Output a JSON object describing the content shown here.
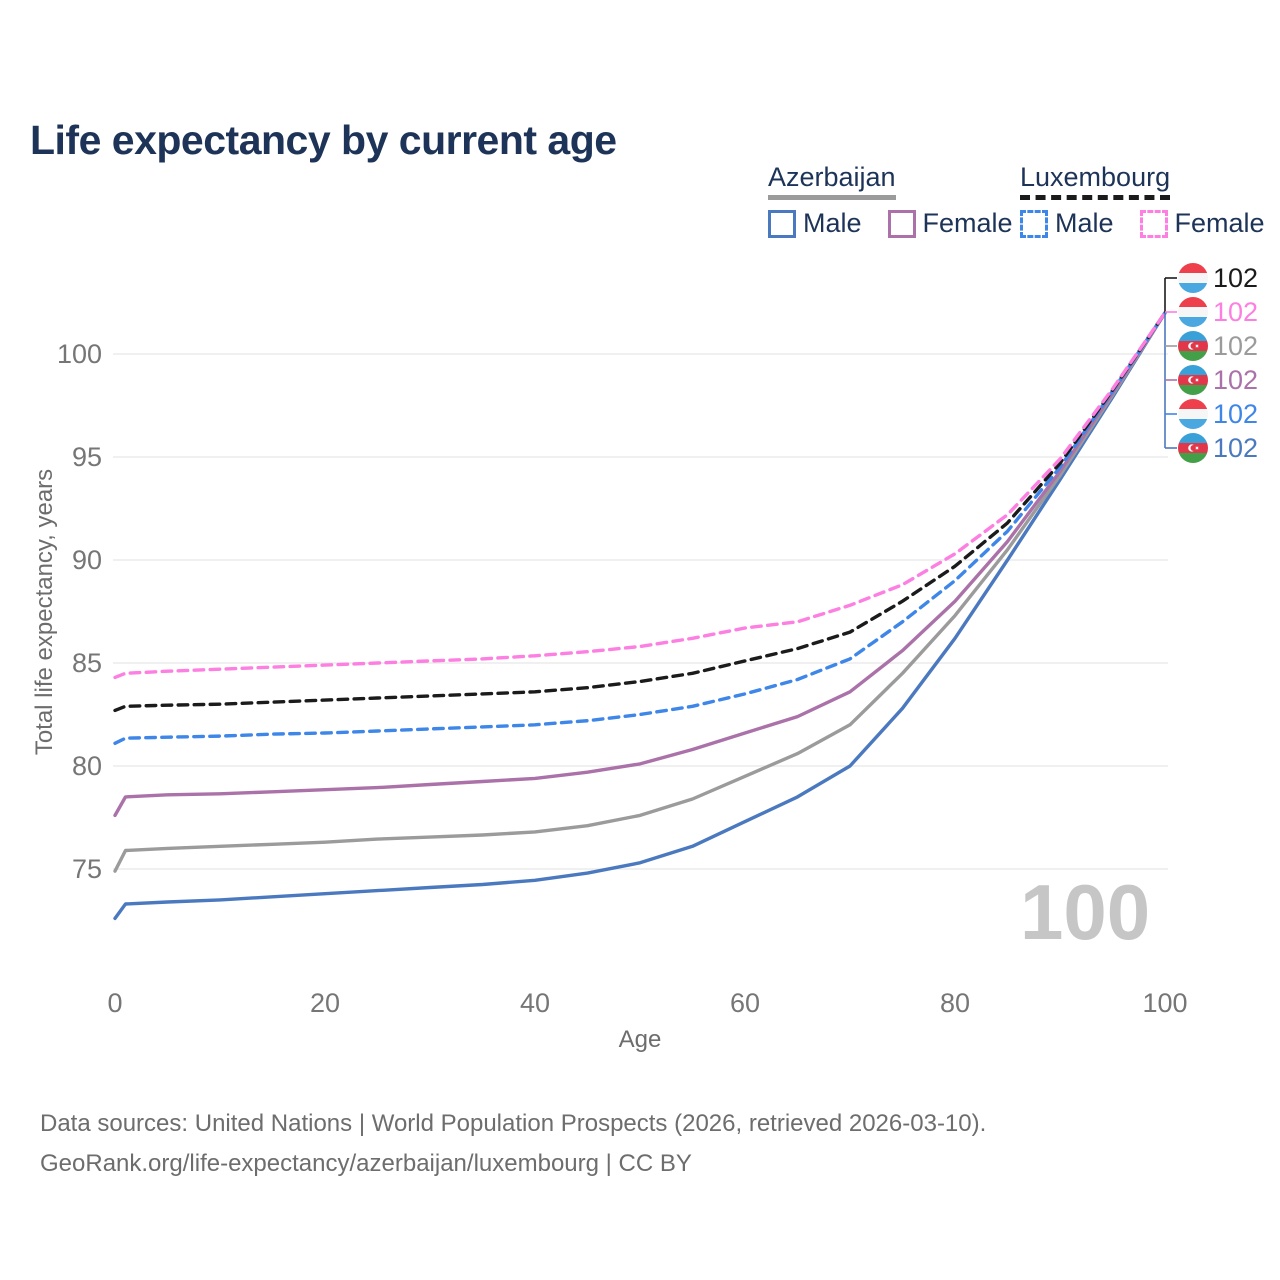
{
  "title": "Life expectancy by current age",
  "legend": {
    "groups": [
      {
        "country": "Azerbaijan",
        "items": [
          {
            "label": "Male"
          },
          {
            "label": "Female"
          }
        ]
      },
      {
        "country": "Luxembourg",
        "items": [
          {
            "label": "Male"
          },
          {
            "label": "Female"
          }
        ]
      }
    ]
  },
  "colors": {
    "az_male": "#4b79bf",
    "az_female": "#ab72a9",
    "az_total": "#9b9b9b",
    "lux_male": "#3e86e8",
    "lux_female": "#fc7fe1",
    "lux_total": "#1b1b1b",
    "grid": "#ebebeb",
    "axis_text": "#767676",
    "heading_text": "#1d3357",
    "watermark": "#c6c6c6"
  },
  "axes": {
    "x": {
      "label": "Age",
      "ticks": [
        0,
        20,
        40,
        60,
        80,
        100
      ]
    },
    "y": {
      "label": "Total life expectancy, years",
      "ticks": [
        75,
        80,
        85,
        90,
        95,
        100
      ]
    }
  },
  "watermark": "100",
  "end_labels": [
    {
      "flag": "luxembourg",
      "series": "lux_total",
      "value": "102"
    },
    {
      "flag": "luxembourg",
      "series": "lux_female",
      "value": "102"
    },
    {
      "flag": "azerbaijan",
      "series": "az_total",
      "value": "102"
    },
    {
      "flag": "azerbaijan",
      "series": "az_female",
      "value": "102"
    },
    {
      "flag": "luxembourg",
      "series": "lux_male",
      "value": "102"
    },
    {
      "flag": "azerbaijan",
      "series": "az_male",
      "value": "102"
    }
  ],
  "chart_data": {
    "type": "line",
    "title": "Life expectancy by current age",
    "xlabel": "Age",
    "ylabel": "Total life expectancy, years",
    "xlim": [
      0,
      100
    ],
    "ylim": [
      71.5,
      103
    ],
    "grid": "horizontal",
    "x": [
      0,
      1,
      5,
      10,
      15,
      20,
      25,
      30,
      35,
      40,
      45,
      50,
      55,
      60,
      65,
      70,
      75,
      80,
      85,
      90,
      95,
      100
    ],
    "series": [
      {
        "name": "Luxembourg Female",
        "key": "lux_female",
        "dash": true,
        "values": [
          84.3,
          84.5,
          84.6,
          84.7,
          84.8,
          84.9,
          85.0,
          85.1,
          85.2,
          85.35,
          85.55,
          85.8,
          86.2,
          86.7,
          87.0,
          87.8,
          88.8,
          90.3,
          92.2,
          94.9,
          98.3,
          102
        ]
      },
      {
        "name": "Luxembourg",
        "key": "lux_total",
        "dash": true,
        "values": [
          82.7,
          82.9,
          82.95,
          83.0,
          83.1,
          83.2,
          83.3,
          83.4,
          83.5,
          83.6,
          83.8,
          84.1,
          84.5,
          85.1,
          85.7,
          86.5,
          88.0,
          89.7,
          91.8,
          94.7,
          98.25,
          102
        ]
      },
      {
        "name": "Luxembourg Male",
        "key": "lux_male",
        "dash": true,
        "values": [
          81.1,
          81.35,
          81.4,
          81.45,
          81.55,
          81.6,
          81.7,
          81.8,
          81.9,
          82.0,
          82.2,
          82.5,
          82.9,
          83.5,
          84.2,
          85.2,
          87.0,
          89.0,
          91.4,
          94.5,
          98.2,
          102
        ]
      },
      {
        "name": "Azerbaijan Female",
        "key": "az_female",
        "dash": false,
        "values": [
          77.6,
          78.5,
          78.6,
          78.65,
          78.75,
          78.85,
          78.95,
          79.1,
          79.25,
          79.4,
          79.7,
          80.1,
          80.8,
          81.6,
          82.4,
          83.6,
          85.6,
          88.0,
          90.9,
          94.3,
          98.1,
          102
        ]
      },
      {
        "name": "Azerbaijan",
        "key": "az_total",
        "dash": false,
        "values": [
          74.9,
          75.9,
          76.0,
          76.1,
          76.2,
          76.3,
          76.45,
          76.55,
          76.65,
          76.8,
          77.1,
          77.6,
          78.4,
          79.5,
          80.6,
          82.0,
          84.5,
          87.3,
          90.5,
          94.1,
          98.0,
          102
        ]
      },
      {
        "name": "Azerbaijan Male",
        "key": "az_male",
        "dash": false,
        "values": [
          72.6,
          73.3,
          73.4,
          73.5,
          73.65,
          73.8,
          73.95,
          74.1,
          74.25,
          74.45,
          74.8,
          75.3,
          76.1,
          77.3,
          78.5,
          80.0,
          82.8,
          86.2,
          90.0,
          93.9,
          97.9,
          102
        ]
      }
    ]
  },
  "footer": {
    "line1": "Data sources: United Nations | World Population Prospects (2026, retrieved 2026-03-10).",
    "line2": "GeoRank.org/life-expectancy/azerbaijan/luxembourg | CC BY"
  }
}
